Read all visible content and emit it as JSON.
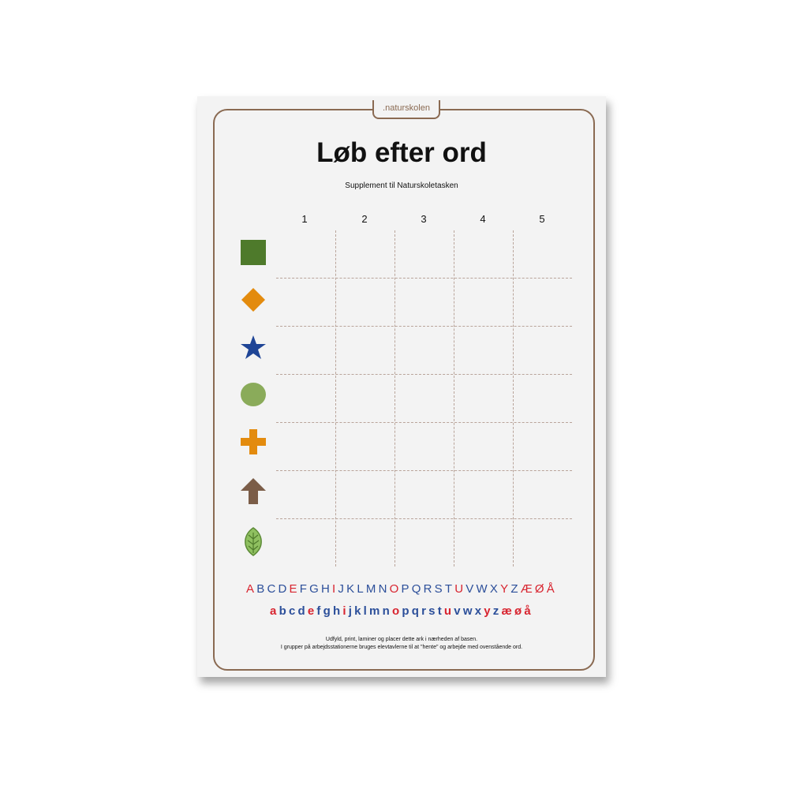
{
  "brand": ".naturskolen",
  "title": "Løb efter ord",
  "subtitle": "Supplement til Naturskoletasken",
  "columns": [
    "1",
    "2",
    "3",
    "4",
    "5"
  ],
  "row_icons": [
    {
      "name": "square-icon",
      "color": "#4e7a2b"
    },
    {
      "name": "diamond-icon",
      "color": "#e38b0e"
    },
    {
      "name": "star-icon",
      "color": "#1f4596"
    },
    {
      "name": "circle-icon",
      "color": "#8aab5a"
    },
    {
      "name": "plus-icon",
      "color": "#e38b0e"
    },
    {
      "name": "arrow-up-icon",
      "color": "#7b5d48"
    },
    {
      "name": "leaf-icon",
      "color": "#8fc060"
    }
  ],
  "alphabet_upper": [
    "A",
    "B",
    "C",
    "D",
    "E",
    "F",
    "G",
    "H",
    "I",
    "J",
    "K",
    "L",
    "M",
    "N",
    "O",
    "P",
    "Q",
    "R",
    "S",
    "T",
    "U",
    "V",
    "W",
    "X",
    "Y",
    "Z",
    "Æ",
    "Ø",
    "Å"
  ],
  "alphabet_lower": [
    "a",
    "b",
    "c",
    "d",
    "e",
    "f",
    "g",
    "h",
    "i",
    "j",
    "k",
    "l",
    "m",
    "n",
    "o",
    "p",
    "q",
    "r",
    "s",
    "t",
    "u",
    "v",
    "w",
    "x",
    "y",
    "z",
    "æ",
    "ø",
    "å"
  ],
  "vowels": [
    "a",
    "e",
    "i",
    "o",
    "u",
    "y",
    "æ",
    "ø",
    "å"
  ],
  "colors": {
    "vowel": "#d8242f",
    "consonant": "#2c4f9a",
    "frame": "#8a6a52"
  },
  "footer": {
    "line1": "Udfyld, print, laminer og placer dette ark i nærheden af basen.",
    "line2": "I grupper på arbejdsstationerne bruges elevtavlerne til at \"hente\" og arbejde med ovenstående ord."
  }
}
